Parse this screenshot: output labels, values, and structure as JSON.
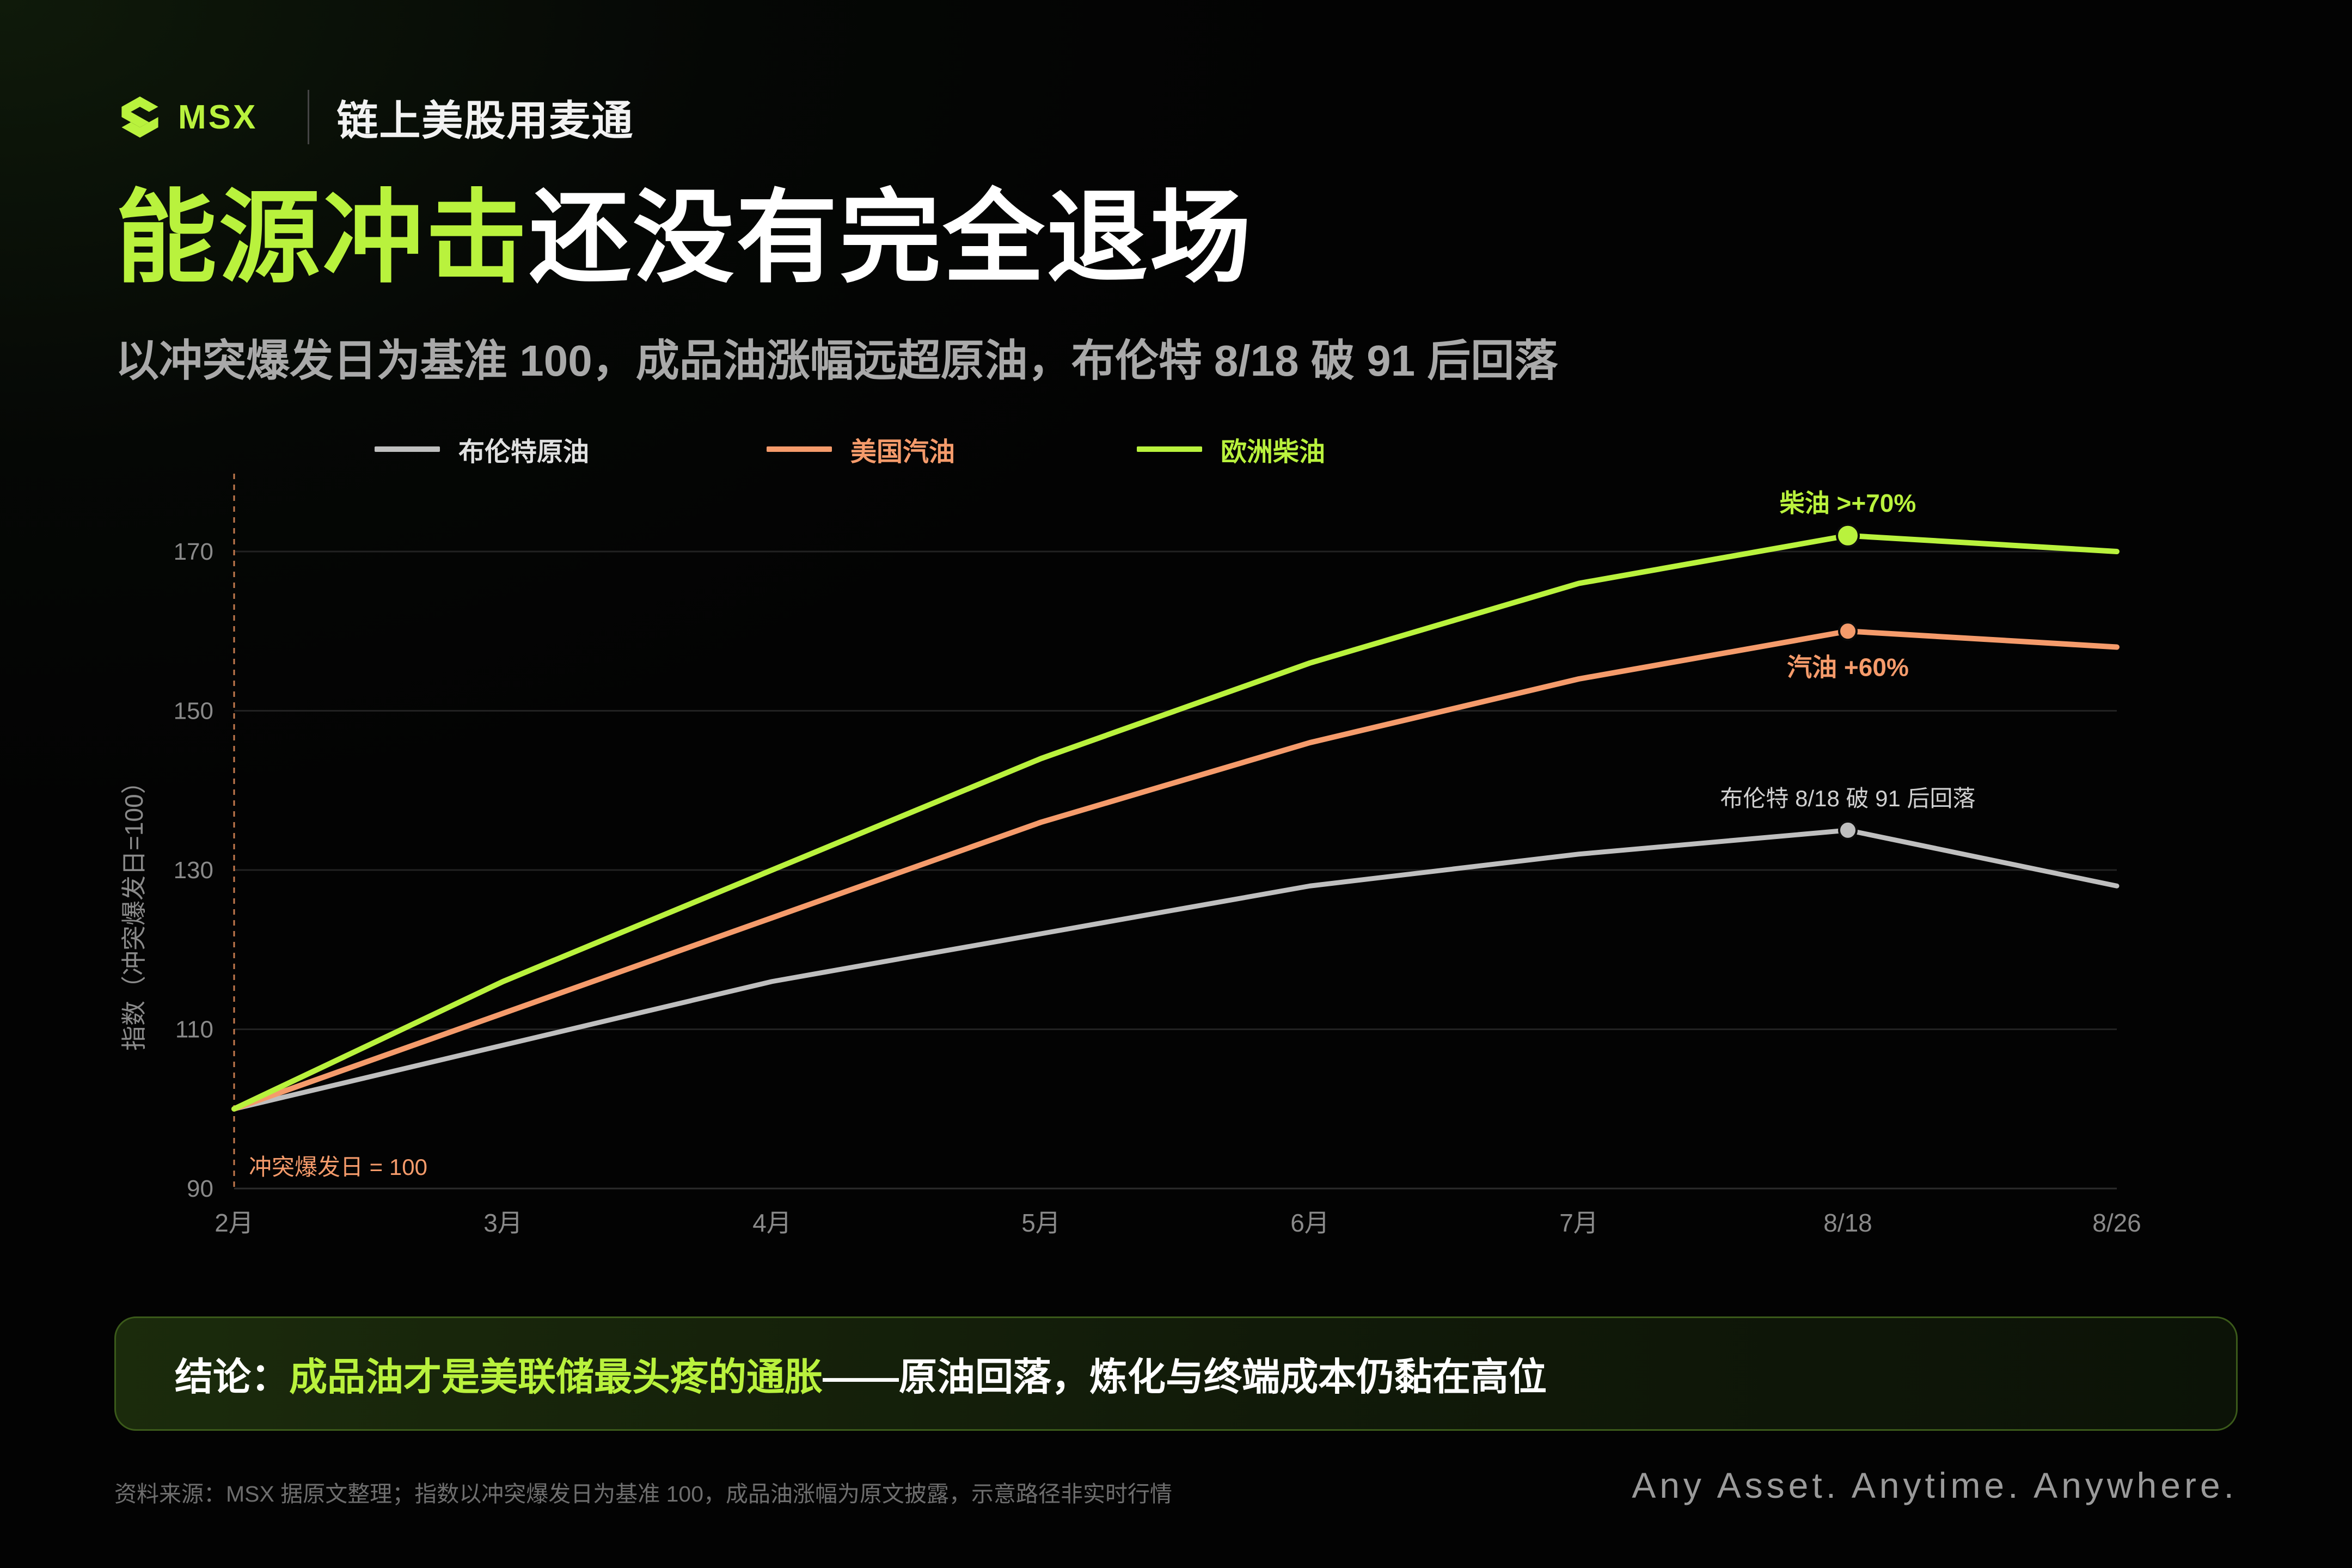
{
  "brand": {
    "logo_text": "MSX",
    "tagline": "链上美股用麦通",
    "accent": "#b9f23d"
  },
  "title": {
    "highlight": "能源冲击",
    "rest": "还没有完全退场"
  },
  "subtitle": "以冲突爆发日为基准 100，成品油涨幅远超原油，布伦特 8/18 破 91 后回落",
  "chart_data": {
    "type": "line",
    "categories": [
      "2月",
      "3月",
      "4月",
      "5月",
      "6月",
      "7月",
      "8/18",
      "8/26"
    ],
    "ylabel": "指数（冲突爆发日=100）",
    "ylim": [
      90,
      180
    ],
    "yticks": [
      90,
      110,
      130,
      150,
      170
    ],
    "grid": true,
    "legend_position": "top",
    "series": [
      {
        "name": "布伦特原油",
        "color": "#bfbfbf",
        "values": [
          100,
          108,
          116,
          122,
          128,
          132,
          135,
          128
        ]
      },
      {
        "name": "美国汽油",
        "color": "#f59b6b",
        "values": [
          100,
          112,
          124,
          136,
          146,
          154,
          160,
          158
        ]
      },
      {
        "name": "欧洲柴油",
        "color": "#b9f23d",
        "values": [
          100,
          116,
          130,
          144,
          156,
          166,
          172,
          170
        ]
      }
    ],
    "baseline_annotation": "冲突爆发日 = 100",
    "annotations": [
      {
        "series": 2,
        "index": 6,
        "text": "柴油 >+70%",
        "position": "above",
        "color": "#b9f23d"
      },
      {
        "series": 1,
        "index": 6,
        "text": "汽油 +60%",
        "position": "below",
        "color": "#f59b6b"
      },
      {
        "series": 0,
        "index": 6,
        "text": "布伦特 8/18 破 91 后回落",
        "position": "above",
        "color": "#d0d0d0"
      }
    ]
  },
  "conclusion": {
    "label": "结论：",
    "highlight": "成品油才是美联储最头疼的通胀",
    "rest": "——原油回落，炼化与终端成本仍黏在高位"
  },
  "footer": {
    "source": "资料来源：MSX 据原文整理；指数以冲突爆发日为基准 100，成品油涨幅为原文披露，示意路径非实时行情",
    "slogan": "Any Asset. Anytime. Anywhere."
  }
}
